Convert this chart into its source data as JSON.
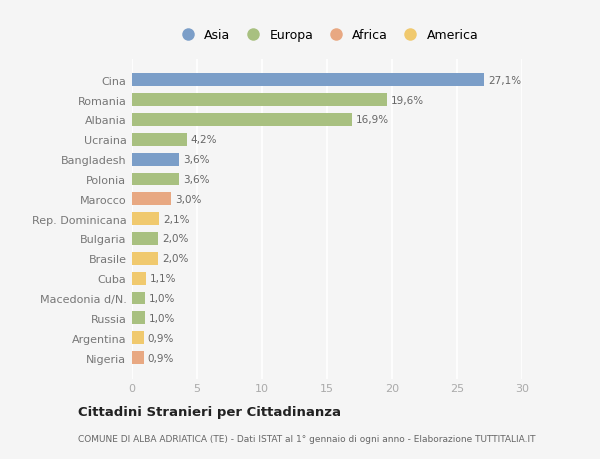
{
  "categories": [
    "Nigeria",
    "Argentina",
    "Russia",
    "Macedonia d/N.",
    "Cuba",
    "Brasile",
    "Bulgaria",
    "Rep. Dominicana",
    "Marocco",
    "Polonia",
    "Bangladesh",
    "Ucraina",
    "Albania",
    "Romania",
    "Cina"
  ],
  "values": [
    0.9,
    0.9,
    1.0,
    1.0,
    1.1,
    2.0,
    2.0,
    2.1,
    3.0,
    3.6,
    3.6,
    4.2,
    16.9,
    19.6,
    27.1
  ],
  "labels": [
    "0,9%",
    "0,9%",
    "1,0%",
    "1,0%",
    "1,1%",
    "2,0%",
    "2,0%",
    "2,1%",
    "3,0%",
    "3,6%",
    "3,6%",
    "4,2%",
    "16,9%",
    "19,6%",
    "27,1%"
  ],
  "colors": [
    "#E8A882",
    "#F0C96E",
    "#A8C080",
    "#A8C080",
    "#F0C96E",
    "#F0C96E",
    "#A8C080",
    "#F0C96E",
    "#E8A882",
    "#A8C080",
    "#7B9EC8",
    "#A8C080",
    "#A8C080",
    "#A8C080",
    "#7B9EC8"
  ],
  "continent_colors": {
    "Asia": "#7B9EC8",
    "Europa": "#A8C080",
    "Africa": "#E8A882",
    "America": "#F0C96E"
  },
  "xlim": [
    0,
    30
  ],
  "xticks": [
    0,
    5,
    10,
    15,
    20,
    25,
    30
  ],
  "title": "Cittadini Stranieri per Cittadinanza",
  "subtitle": "COMUNE DI ALBA ADRIATICA (TE) - Dati ISTAT al 1° gennaio di ogni anno - Elaborazione TUTTITALIA.IT",
  "background_color": "#f5f5f5",
  "grid_color": "#ffffff",
  "bar_height": 0.65
}
